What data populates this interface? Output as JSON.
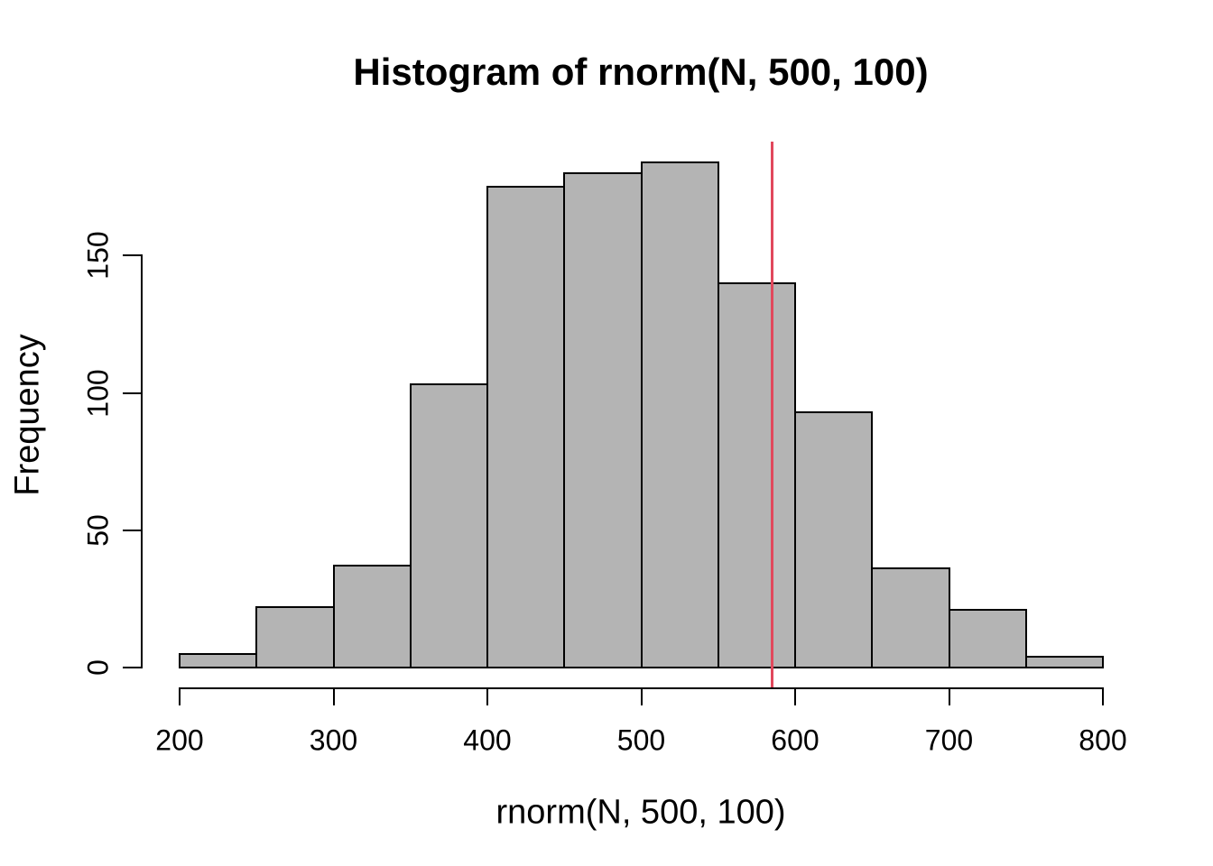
{
  "page": {
    "background": "#ffffff"
  },
  "chart_data": {
    "type": "bar",
    "subtype": "histogram",
    "title": "Histogram of rnorm(N, 500, 100)",
    "xlabel": "rnorm(N, 500, 100)",
    "ylabel": "Frequency",
    "bin_edges": [
      200,
      250,
      300,
      350,
      400,
      450,
      500,
      550,
      600,
      650,
      700,
      750,
      800
    ],
    "counts": [
      5,
      22,
      37,
      103,
      175,
      180,
      184,
      140,
      93,
      36,
      21,
      4
    ],
    "x_ticks": [
      200,
      300,
      400,
      500,
      600,
      700,
      800
    ],
    "y_ticks": [
      0,
      50,
      100,
      150
    ],
    "xlim": [
      200,
      800
    ],
    "ylim": [
      0,
      184
    ],
    "grid": false,
    "legend_position": "none",
    "bar_fill_color": "#b4b4b4",
    "bar_border_color": "#000000",
    "axis_color": "#000000",
    "text_color": "#000000",
    "vline": {
      "x": 585,
      "color": "#e1485c"
    }
  }
}
